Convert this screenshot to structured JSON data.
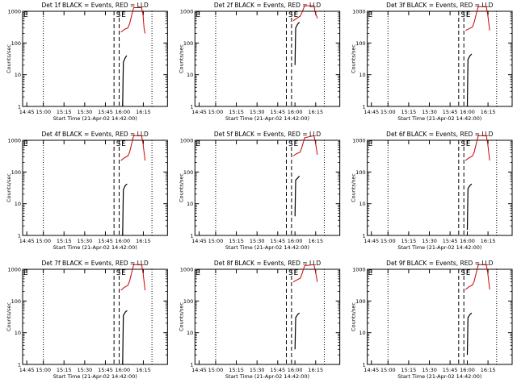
{
  "title_suffix": "BLACK = Events, RED = LLD",
  "xlabel": "Start Time (21-Apr-02 14:42:00)",
  "ylabel": "Counts/sec",
  "x_tick_labels": [
    "14:45",
    "15:00",
    "15:15",
    "15:30",
    "15:45",
    "16:00",
    "16:15"
  ],
  "y_tick_labels": [
    "1",
    "10",
    "100",
    "1000"
  ],
  "marker_labels": {
    "start": "E",
    "s": "S",
    "e": "E"
  },
  "colors": {
    "events": "#000000",
    "lld": "#cc0000",
    "axes": "#000000"
  },
  "chart_data": [
    {
      "type": "line",
      "title": "Det 1f BLACK = Events, RED = LLD",
      "xlabel": "Start Time (21-Apr-02 14:42:00)",
      "ylabel": "Counts/sec",
      "x_ticks": [
        "14:45",
        "15:00",
        "15:15",
        "15:30",
        "15:45",
        "16:00",
        "16:15"
      ],
      "xlim_minutes": [
        0,
        42
      ],
      "ylim": [
        1,
        1000
      ],
      "ylog": true,
      "vlines": [
        {
          "t": 6,
          "style": "dotted"
        },
        {
          "t": 26.5,
          "style": "dashed"
        },
        {
          "t": 28,
          "style": "dashed"
        },
        {
          "t": 37.5,
          "style": "dotted"
        }
      ],
      "events": [
        {
          "t": 29,
          "v": 1
        },
        {
          "t": 29.2,
          "v": 25
        },
        {
          "t": 29.8,
          "v": 35
        },
        {
          "t": 30.2,
          "v": 40
        }
      ],
      "lld": [
        {
          "t": 28.5,
          "v": 220
        },
        {
          "t": 29.5,
          "v": 270
        },
        {
          "t": 30.5,
          "v": 300
        },
        {
          "t": 31,
          "v": 400
        },
        {
          "t": 31.8,
          "v": 900
        },
        {
          "t": 32.2,
          "v": 1300
        },
        {
          "t": 34.5,
          "v": 1300
        },
        {
          "t": 34.9,
          "v": 800
        },
        {
          "t": 35.2,
          "v": 300
        },
        {
          "t": 35.5,
          "v": 200
        }
      ]
    },
    {
      "type": "line",
      "title": "Det 2f BLACK = Events, RED = LLD",
      "xlabel": "Start Time (21-Apr-02 14:42:00)",
      "ylabel": "Counts/sec",
      "x_ticks": [
        "14:45",
        "15:00",
        "15:15",
        "15:30",
        "15:45",
        "16:00",
        "16:15"
      ],
      "xlim_minutes": [
        0,
        42
      ],
      "ylim": [
        1,
        1000
      ],
      "ylog": true,
      "vlines": [
        {
          "t": 6,
          "style": "dotted"
        },
        {
          "t": 26.5,
          "style": "dashed"
        },
        {
          "t": 28,
          "style": "dashed"
        },
        {
          "t": 37.5,
          "style": "dotted"
        }
      ],
      "events": [
        {
          "t": 29,
          "v": 20
        },
        {
          "t": 29.2,
          "v": 300
        },
        {
          "t": 29.8,
          "v": 400
        },
        {
          "t": 30.3,
          "v": 450
        }
      ],
      "lld": [
        {
          "t": 28.5,
          "v": 500
        },
        {
          "t": 29.5,
          "v": 600
        },
        {
          "t": 30.5,
          "v": 700
        },
        {
          "t": 31,
          "v": 900
        },
        {
          "t": 31.8,
          "v": 1500
        },
        {
          "t": 34.5,
          "v": 1500
        },
        {
          "t": 34.9,
          "v": 900
        },
        {
          "t": 35.5,
          "v": 600
        }
      ]
    },
    {
      "type": "line",
      "title": "Det 3f BLACK = Events, RED = LLD",
      "xlabel": "Start Time (21-Apr-02 14:42:00)",
      "ylabel": "Counts/sec",
      "x_ticks": [
        "14:45",
        "15:00",
        "15:15",
        "15:30",
        "15:45",
        "16:00",
        "16:15"
      ],
      "xlim_minutes": [
        0,
        42
      ],
      "ylim": [
        1,
        1000
      ],
      "ylog": true,
      "vlines": [
        {
          "t": 6,
          "style": "dotted"
        },
        {
          "t": 26.5,
          "style": "dashed"
        },
        {
          "t": 28,
          "style": "dashed"
        },
        {
          "t": 37.5,
          "style": "dotted"
        }
      ],
      "events": [
        {
          "t": 29,
          "v": 1
        },
        {
          "t": 29.2,
          "v": 30
        },
        {
          "t": 29.8,
          "v": 40
        },
        {
          "t": 30.3,
          "v": 45
        }
      ],
      "lld": [
        {
          "t": 28.5,
          "v": 250
        },
        {
          "t": 29.5,
          "v": 280
        },
        {
          "t": 30.5,
          "v": 320
        },
        {
          "t": 31,
          "v": 450
        },
        {
          "t": 31.8,
          "v": 1000
        },
        {
          "t": 32.2,
          "v": 1400
        },
        {
          "t": 34.5,
          "v": 1400
        },
        {
          "t": 34.9,
          "v": 800
        },
        {
          "t": 35.5,
          "v": 250
        }
      ]
    },
    {
      "type": "line",
      "title": "Det 4f BLACK = Events, RED = LLD",
      "xlabel": "Start Time (21-Apr-02 14:42:00)",
      "ylabel": "Counts/sec",
      "x_ticks": [
        "14:45",
        "15:00",
        "15:15",
        "15:30",
        "15:45",
        "16:00",
        "16:15"
      ],
      "xlim_minutes": [
        0,
        42
      ],
      "ylim": [
        1,
        1000
      ],
      "ylog": true,
      "vlines": [
        {
          "t": 6,
          "style": "dotted"
        },
        {
          "t": 26.5,
          "style": "dashed"
        },
        {
          "t": 28,
          "style": "dashed"
        },
        {
          "t": 37.5,
          "style": "dotted"
        }
      ],
      "events": [
        {
          "t": 29,
          "v": 1
        },
        {
          "t": 29.2,
          "v": 28
        },
        {
          "t": 29.8,
          "v": 38
        },
        {
          "t": 30.3,
          "v": 42
        }
      ],
      "lld": [
        {
          "t": 28.5,
          "v": 230
        },
        {
          "t": 29.5,
          "v": 280
        },
        {
          "t": 30.5,
          "v": 320
        },
        {
          "t": 31,
          "v": 420
        },
        {
          "t": 31.8,
          "v": 950
        },
        {
          "t": 32.2,
          "v": 1400
        },
        {
          "t": 34.5,
          "v": 1400
        },
        {
          "t": 34.9,
          "v": 800
        },
        {
          "t": 35.5,
          "v": 230
        }
      ]
    },
    {
      "type": "line",
      "title": "Det 5f BLACK = Events, RED = LLD",
      "xlabel": "Start Time (21-Apr-02 14:42:00)",
      "ylabel": "Counts/sec",
      "x_ticks": [
        "14:45",
        "15:00",
        "15:15",
        "15:30",
        "15:45",
        "16:00",
        "16:15"
      ],
      "xlim_minutes": [
        0,
        42
      ],
      "ylim": [
        1,
        1000
      ],
      "ylog": true,
      "vlines": [
        {
          "t": 6,
          "style": "dotted"
        },
        {
          "t": 26.5,
          "style": "dashed"
        },
        {
          "t": 28,
          "style": "dashed"
        },
        {
          "t": 37.5,
          "style": "dotted"
        }
      ],
      "events": [
        {
          "t": 29,
          "v": 4
        },
        {
          "t": 29.2,
          "v": 55
        },
        {
          "t": 29.8,
          "v": 65
        },
        {
          "t": 30.3,
          "v": 75
        }
      ],
      "lld": [
        {
          "t": 28.5,
          "v": 320
        },
        {
          "t": 29.5,
          "v": 380
        },
        {
          "t": 30.5,
          "v": 420
        },
        {
          "t": 31,
          "v": 600
        },
        {
          "t": 31.8,
          "v": 1200
        },
        {
          "t": 34.5,
          "v": 1400
        },
        {
          "t": 34.9,
          "v": 900
        },
        {
          "t": 35.5,
          "v": 350
        }
      ]
    },
    {
      "type": "line",
      "title": "Det 6f BLACK = Events, RED = LLD",
      "xlabel": "Start Time (21-Apr-02 14:42:00)",
      "ylabel": "Counts/sec",
      "x_ticks": [
        "14:45",
        "15:00",
        "15:15",
        "15:30",
        "15:45",
        "16:00",
        "16:15"
      ],
      "xlim_minutes": [
        0,
        42
      ],
      "ylim": [
        1,
        1000
      ],
      "ylog": true,
      "vlines": [
        {
          "t": 6,
          "style": "dotted"
        },
        {
          "t": 26.5,
          "style": "dashed"
        },
        {
          "t": 28,
          "style": "dashed"
        },
        {
          "t": 37.5,
          "style": "dotted"
        }
      ],
      "events": [
        {
          "t": 29,
          "v": 1.5
        },
        {
          "t": 29.2,
          "v": 30
        },
        {
          "t": 29.8,
          "v": 38
        },
        {
          "t": 30.3,
          "v": 42
        }
      ],
      "lld": [
        {
          "t": 28.5,
          "v": 230
        },
        {
          "t": 29.5,
          "v": 280
        },
        {
          "t": 30.5,
          "v": 320
        },
        {
          "t": 31,
          "v": 420
        },
        {
          "t": 31.8,
          "v": 950
        },
        {
          "t": 32.2,
          "v": 1400
        },
        {
          "t": 34.5,
          "v": 1400
        },
        {
          "t": 34.9,
          "v": 800
        },
        {
          "t": 35.5,
          "v": 230
        }
      ]
    },
    {
      "type": "line",
      "title": "Det 7f BLACK = Events, RED = LLD",
      "xlabel": "Start Time (21-Apr-02 14:42:00)",
      "ylabel": "Counts/sec",
      "x_ticks": [
        "14:45",
        "15:00",
        "15:15",
        "15:30",
        "15:45",
        "16:00",
        "16:15"
      ],
      "xlim_minutes": [
        0,
        42
      ],
      "ylim": [
        1,
        1000
      ],
      "ylog": true,
      "vlines": [
        {
          "t": 6,
          "style": "dotted"
        },
        {
          "t": 26.5,
          "style": "dashed"
        },
        {
          "t": 28,
          "style": "dashed"
        },
        {
          "t": 37.5,
          "style": "dotted"
        }
      ],
      "events": [
        {
          "t": 29,
          "v": 1
        },
        {
          "t": 29.2,
          "v": 35
        },
        {
          "t": 29.8,
          "v": 45
        },
        {
          "t": 30.3,
          "v": 50
        }
      ],
      "lld": [
        {
          "t": 28.5,
          "v": 220
        },
        {
          "t": 29.5,
          "v": 270
        },
        {
          "t": 30.5,
          "v": 310
        },
        {
          "t": 31,
          "v": 420
        },
        {
          "t": 31.8,
          "v": 950
        },
        {
          "t": 32.2,
          "v": 1400
        },
        {
          "t": 34.5,
          "v": 1400
        },
        {
          "t": 34.9,
          "v": 800
        },
        {
          "t": 35.5,
          "v": 220
        }
      ]
    },
    {
      "type": "line",
      "title": "Det 8f BLACK = Events, RED = LLD",
      "xlabel": "Start Time (21-Apr-02 14:42:00)",
      "ylabel": "Counts/sec",
      "x_ticks": [
        "14:45",
        "15:00",
        "15:15",
        "15:30",
        "15:45",
        "16:00",
        "16:15"
      ],
      "xlim_minutes": [
        0,
        42
      ],
      "ylim": [
        1,
        1000
      ],
      "ylog": true,
      "vlines": [
        {
          "t": 6,
          "style": "dotted"
        },
        {
          "t": 26.5,
          "style": "dashed"
        },
        {
          "t": 28,
          "style": "dashed"
        },
        {
          "t": 37.5,
          "style": "dotted"
        }
      ],
      "events": [
        {
          "t": 29,
          "v": 3
        },
        {
          "t": 29.2,
          "v": 30
        },
        {
          "t": 29.8,
          "v": 38
        },
        {
          "t": 30.3,
          "v": 42
        }
      ],
      "lld": [
        {
          "t": 28.5,
          "v": 400
        },
        {
          "t": 29.5,
          "v": 460
        },
        {
          "t": 30.5,
          "v": 520
        },
        {
          "t": 31,
          "v": 700
        },
        {
          "t": 31.8,
          "v": 1300
        },
        {
          "t": 34.5,
          "v": 1400
        },
        {
          "t": 34.9,
          "v": 900
        },
        {
          "t": 35.5,
          "v": 400
        }
      ]
    },
    {
      "type": "line",
      "title": "Det 9f BLACK = Events, RED = LLD",
      "xlabel": "Start Time (21-Apr-02 14:42:00)",
      "ylabel": "Counts/sec",
      "x_ticks": [
        "14:45",
        "15:00",
        "15:15",
        "15:30",
        "15:45",
        "16:00",
        "16:15"
      ],
      "xlim_minutes": [
        0,
        42
      ],
      "ylim": [
        1,
        1000
      ],
      "ylog": true,
      "vlines": [
        {
          "t": 6,
          "style": "dotted"
        },
        {
          "t": 26.5,
          "style": "dashed"
        },
        {
          "t": 28,
          "style": "dashed"
        },
        {
          "t": 37.5,
          "style": "dotted"
        }
      ],
      "events": [
        {
          "t": 29,
          "v": 2
        },
        {
          "t": 29.2,
          "v": 30
        },
        {
          "t": 29.8,
          "v": 38
        },
        {
          "t": 30.3,
          "v": 42
        }
      ],
      "lld": [
        {
          "t": 28.5,
          "v": 230
        },
        {
          "t": 29.5,
          "v": 280
        },
        {
          "t": 30.5,
          "v": 320
        },
        {
          "t": 31,
          "v": 420
        },
        {
          "t": 31.8,
          "v": 950
        },
        {
          "t": 32.2,
          "v": 1400
        },
        {
          "t": 34.5,
          "v": 1400
        },
        {
          "t": 34.9,
          "v": 800
        },
        {
          "t": 35.5,
          "v": 230
        }
      ]
    }
  ]
}
